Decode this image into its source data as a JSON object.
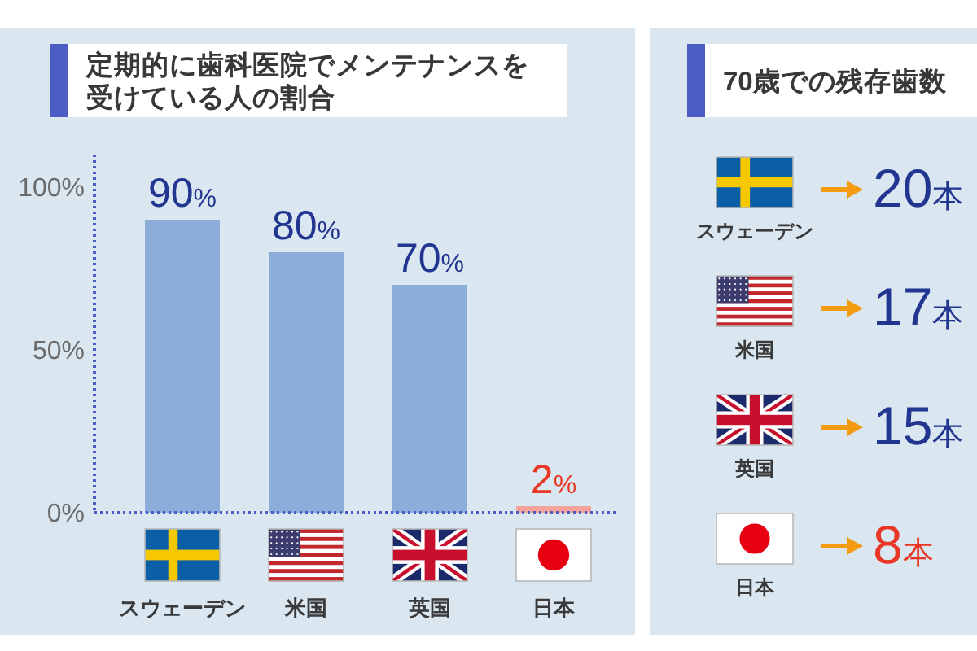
{
  "chart_data": [
    {
      "type": "bar",
      "title": "定期的に歯科医院でメンテナンスを受けている人の割合",
      "categories": [
        "スウェーデン",
        "米国",
        "英国",
        "日本"
      ],
      "values": [
        90,
        80,
        70,
        2
      ],
      "colors": [
        "#8cadd9",
        "#8cadd9",
        "#8cadd9",
        "#f5a29a"
      ],
      "value_labels": [
        "90%",
        "80%",
        "70%",
        "2%"
      ],
      "ylim": [
        0,
        110
      ],
      "yticks": [
        {
          "value": 0,
          "label": "0%"
        },
        {
          "value": 50,
          "label": "50%"
        },
        {
          "value": 100,
          "label": "100%"
        }
      ]
    },
    {
      "type": "other",
      "title": "70歳での残存歯数",
      "categories": [
        "スウェーデン",
        "米国",
        "英国",
        "日本"
      ],
      "values": [
        20,
        17,
        15,
        8
      ],
      "value_labels": [
        "20本",
        "17本",
        "15本",
        "8本"
      ]
    }
  ]
}
